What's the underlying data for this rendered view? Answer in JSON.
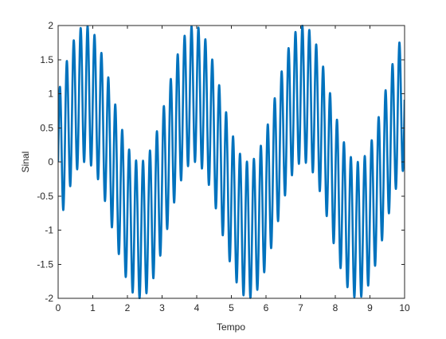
{
  "chart_data": {
    "type": "line",
    "title": "",
    "xlabel": "Tempo",
    "ylabel": "Sinal",
    "xlim": [
      0,
      10
    ],
    "ylim": [
      -2,
      2
    ],
    "xticks": [
      0,
      1,
      2,
      3,
      4,
      5,
      6,
      7,
      8,
      9,
      10
    ],
    "yticks": [
      -2,
      -1.5,
      -1,
      -0.5,
      0,
      0.5,
      1,
      1.5,
      2
    ],
    "grid": false,
    "legend": "none",
    "series": [
      {
        "color": "#0072bd",
        "x_start": 0,
        "x_end": 10,
        "expression": "sin(2*pi*t/pi) + sin(2*pi*5*t)",
        "components": [
          {
            "amplitude": 1,
            "frequency": 0.3183,
            "phase": 0
          },
          {
            "amplitude": 1,
            "frequency": 5,
            "phase": 0
          }
        ]
      }
    ]
  }
}
